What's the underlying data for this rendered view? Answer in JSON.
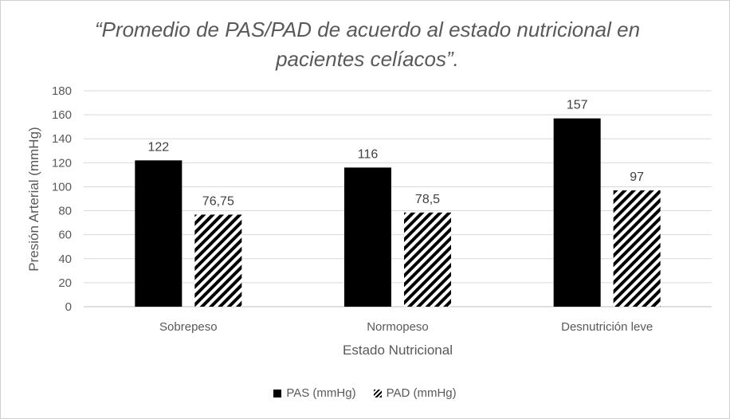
{
  "chart_data": {
    "type": "bar",
    "title": "“Promedio de PAS/PAD de acuerdo al estado nutricional en pacientes celíacos”.",
    "xlabel": "Estado Nutricional",
    "ylabel": "Presión Arterial (mmHg)",
    "categories": [
      "Sobrepeso",
      "Normopeso",
      "Desnutrición leve"
    ],
    "series": [
      {
        "name": "PAS (mmHg)",
        "values": [
          122,
          116,
          157
        ],
        "labels": [
          "122",
          "116",
          "157"
        ],
        "fill": "#000000",
        "pattern": "solid"
      },
      {
        "name": "PAD (mmHg)",
        "values": [
          76.75,
          78.5,
          97
        ],
        "labels": [
          "76,75",
          "78,5",
          "97"
        ],
        "fill": "#000000",
        "pattern": "diagonal-hatch"
      }
    ],
    "ylim": [
      0,
      180
    ],
    "yticks": [
      0,
      20,
      40,
      60,
      80,
      100,
      120,
      140,
      160,
      180
    ],
    "grid": true,
    "legend_position": "bottom"
  }
}
